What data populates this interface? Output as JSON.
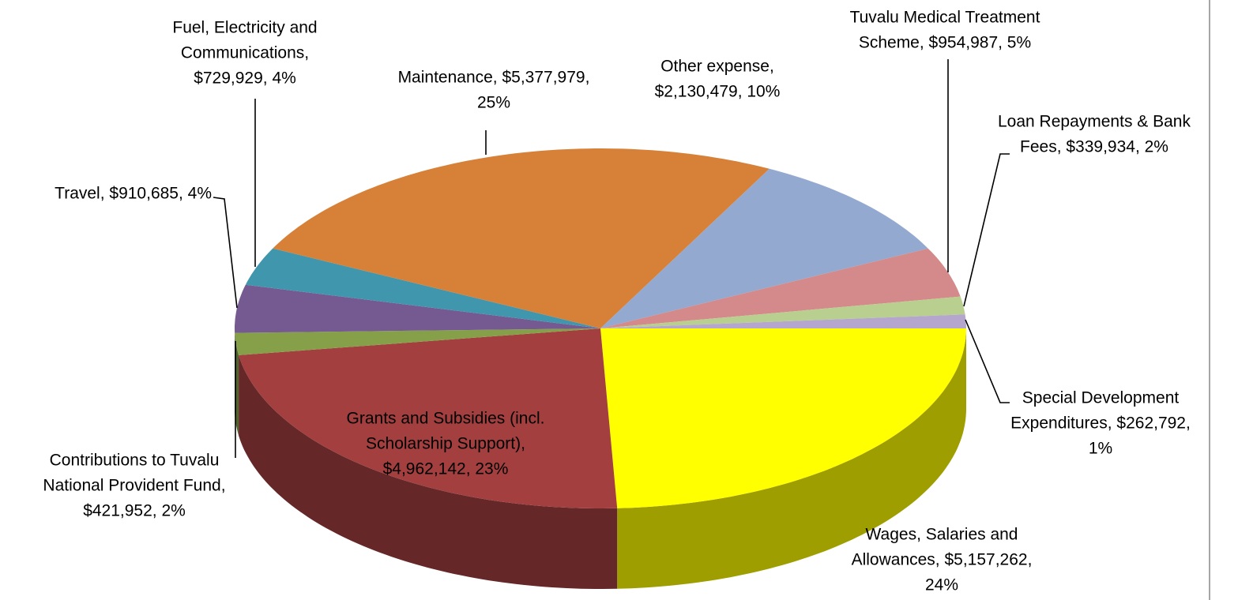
{
  "chart_data": {
    "type": "pie3d",
    "labels": [
      [
        "Wages, Salaries and",
        "Allowances, $5,157,262,",
        "24%"
      ],
      [
        "Grants and Subsidies (incl.",
        "Scholarship Support),",
        "$4,962,142, 23%"
      ],
      [
        "Contributions to Tuvalu",
        "National Provident Fund,",
        "$421,952, 2%"
      ],
      [
        "Travel, $910,685, 4%"
      ],
      [
        "Fuel, Electricity and",
        "Communications,",
        "$729,929, 4%"
      ],
      [
        "Maintenance, $5,377,979,",
        "25%"
      ],
      [
        "Other expense,",
        "$2,130,479, 10%"
      ],
      [
        "Tuvalu Medical Treatment",
        "Scheme, $954,987, 5%"
      ],
      [
        "Loan Repayments & Bank",
        "Fees, $339,934, 2%"
      ],
      [
        "Special Development",
        "Expenditures, $262,792,",
        "1%"
      ]
    ],
    "values": [
      5157262,
      4962142,
      421952,
      910685,
      729929,
      5377979,
      2130479,
      954987,
      339934,
      262792
    ],
    "colors": [
      "#ffff00",
      "#a33f3f",
      "#86a04a",
      "#745a90",
      "#3f96ad",
      "#d78038",
      "#93a9d0",
      "#d48a8a",
      "#b8cf90",
      "#b4a6cc"
    ]
  }
}
